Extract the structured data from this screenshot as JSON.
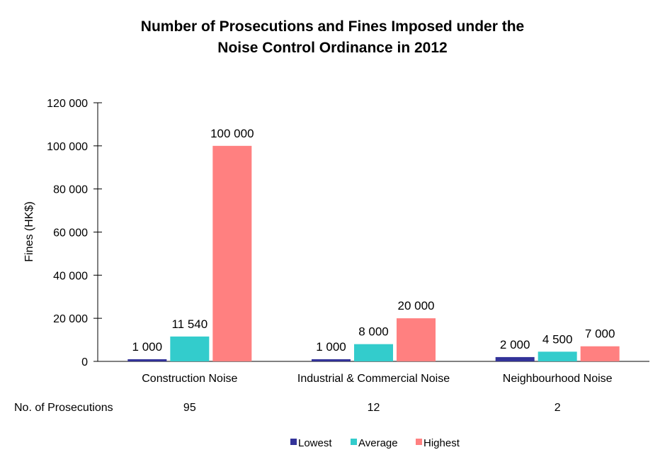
{
  "chart_data": {
    "type": "bar",
    "title": [
      "Number of Prosecutions and Fines Imposed under the",
      "Noise Control Ordinance in 2012"
    ],
    "ylabel": "Fines (HK$)",
    "xlabel": "",
    "ylim": [
      0,
      120000
    ],
    "yticks": [
      0,
      20000,
      40000,
      60000,
      80000,
      100000,
      120000
    ],
    "ytick_labels": [
      "0",
      "20 000",
      "40 000",
      "60 000",
      "80 000",
      "100 000",
      "120 000"
    ],
    "grid": false,
    "legend_position": "bottom",
    "categories": [
      "Construction Noise",
      "Industrial & Commercial Noise",
      "Neighbourhood Noise"
    ],
    "series": [
      {
        "name": "Lowest",
        "color": "#333399",
        "values": [
          1000,
          1000,
          2000
        ],
        "labels": [
          "1 000",
          "1 000",
          "2 000"
        ]
      },
      {
        "name": "Average",
        "color": "#33CCCC",
        "values": [
          11540,
          8000,
          4500
        ],
        "labels": [
          "11 540",
          "8 000",
          "4 500"
        ]
      },
      {
        "name": "Highest",
        "color": "#FF8080",
        "values": [
          100000,
          20000,
          7000
        ],
        "labels": [
          "100 000",
          "20 000",
          "7 000"
        ]
      }
    ],
    "prosecutions": {
      "label": "No. of Prosecutions",
      "values": [
        "95",
        "12",
        "2"
      ]
    }
  }
}
